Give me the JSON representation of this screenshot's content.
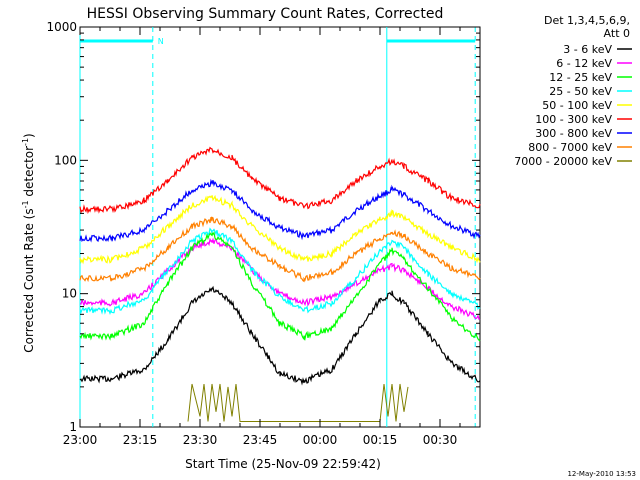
{
  "chart_data": {
    "type": "line",
    "title": "HESSI Observing Summary Count Rates, Corrected",
    "xlabel": "Start Time (25-Nov-09 22:59:42)",
    "ylabel_main": "Corrected Count Rate (s",
    "ylabel_mid": " detector",
    "ylabel_end": ")",
    "ylabel_sup": "-1",
    "yscale": "log",
    "ylim": [
      1,
      1000
    ],
    "y_ticks": [
      1,
      10,
      100,
      1000
    ],
    "y_tick_labels": [
      "1",
      "10",
      "100",
      "1000"
    ],
    "x_unit": "minutes after 23:00 on 25-Nov-09",
    "xlim": [
      0,
      100
    ],
    "x_ticks": [
      0,
      15,
      30,
      45,
      60,
      75,
      90
    ],
    "x_tick_labels": [
      "23:00",
      "23:15",
      "23:30",
      "23:45",
      "00:00",
      "00:15",
      "00:30"
    ],
    "legend": {
      "placement": "right",
      "header": [
        "Det 1,3,4,5,6,9,",
        "Att 0"
      ]
    },
    "series": [
      {
        "name": "3 - 6 keV",
        "color": "#000000",
        "points": [
          [
            0,
            2.3
          ],
          [
            8,
            2.3
          ],
          [
            16,
            2.7
          ],
          [
            22,
            4.5
          ],
          [
            28,
            8.5
          ],
          [
            33,
            10.8
          ],
          [
            38,
            8.5
          ],
          [
            43,
            5
          ],
          [
            50,
            2.5
          ],
          [
            56,
            2.2
          ],
          [
            63,
            2.7
          ],
          [
            69,
            5
          ],
          [
            75,
            9
          ],
          [
            78,
            10
          ],
          [
            81,
            8.5
          ],
          [
            87,
            5
          ],
          [
            93,
            3
          ],
          [
            100,
            2.2
          ]
        ]
      },
      {
        "name": "6 - 12 keV",
        "color": "#ff00ff",
        "points": [
          [
            0,
            8.5
          ],
          [
            8,
            8.5
          ],
          [
            16,
            10
          ],
          [
            22,
            15
          ],
          [
            28,
            22
          ],
          [
            33,
            25
          ],
          [
            38,
            22
          ],
          [
            43,
            15
          ],
          [
            50,
            10
          ],
          [
            56,
            8.5
          ],
          [
            63,
            9.5
          ],
          [
            69,
            12
          ],
          [
            75,
            15
          ],
          [
            78,
            16
          ],
          [
            81,
            15
          ],
          [
            87,
            11
          ],
          [
            93,
            8
          ],
          [
            100,
            6.5
          ]
        ]
      },
      {
        "name": "12 - 25 keV",
        "color": "#00ff00",
        "points": [
          [
            0,
            4.8
          ],
          [
            8,
            4.8
          ],
          [
            16,
            6
          ],
          [
            22,
            12
          ],
          [
            28,
            22
          ],
          [
            33,
            28
          ],
          [
            38,
            22
          ],
          [
            43,
            12
          ],
          [
            50,
            6
          ],
          [
            56,
            4.8
          ],
          [
            63,
            5.5
          ],
          [
            69,
            9.5
          ],
          [
            75,
            17
          ],
          [
            78,
            21
          ],
          [
            81,
            18
          ],
          [
            87,
            11
          ],
          [
            93,
            6.5
          ],
          [
            100,
            4.5
          ]
        ]
      },
      {
        "name": "25 - 50 keV",
        "color": "#00ffff",
        "points": [
          [
            0,
            7.5
          ],
          [
            8,
            7.5
          ],
          [
            16,
            9
          ],
          [
            22,
            15
          ],
          [
            28,
            25
          ],
          [
            33,
            30
          ],
          [
            38,
            25
          ],
          [
            43,
            15
          ],
          [
            50,
            9.5
          ],
          [
            56,
            7.5
          ],
          [
            63,
            8.5
          ],
          [
            69,
            13
          ],
          [
            75,
            21
          ],
          [
            78,
            25
          ],
          [
            81,
            22
          ],
          [
            87,
            14
          ],
          [
            93,
            10
          ],
          [
            100,
            8
          ]
        ]
      },
      {
        "name": "50 - 100 keV",
        "color": "#ffff00",
        "points": [
          [
            0,
            18
          ],
          [
            8,
            18
          ],
          [
            16,
            22
          ],
          [
            22,
            32
          ],
          [
            28,
            46
          ],
          [
            33,
            52
          ],
          [
            38,
            46
          ],
          [
            43,
            32
          ],
          [
            50,
            22
          ],
          [
            56,
            18
          ],
          [
            63,
            20
          ],
          [
            69,
            28
          ],
          [
            75,
            36
          ],
          [
            78,
            40
          ],
          [
            81,
            37
          ],
          [
            87,
            28
          ],
          [
            93,
            22
          ],
          [
            100,
            18
          ]
        ]
      },
      {
        "name": "100 - 300 keV",
        "color": "#ff0000",
        "points": [
          [
            0,
            43
          ],
          [
            8,
            43
          ],
          [
            16,
            50
          ],
          [
            22,
            70
          ],
          [
            28,
            105
          ],
          [
            33,
            120
          ],
          [
            38,
            105
          ],
          [
            43,
            72
          ],
          [
            50,
            52
          ],
          [
            56,
            45
          ],
          [
            63,
            50
          ],
          [
            69,
            70
          ],
          [
            75,
            90
          ],
          [
            78,
            98
          ],
          [
            81,
            90
          ],
          [
            87,
            70
          ],
          [
            93,
            52
          ],
          [
            100,
            45
          ]
        ]
      },
      {
        "name": "300 - 800 keV",
        "color": "#0000ff",
        "points": [
          [
            0,
            26
          ],
          [
            8,
            26
          ],
          [
            16,
            30
          ],
          [
            22,
            42
          ],
          [
            28,
            60
          ],
          [
            33,
            68
          ],
          [
            38,
            60
          ],
          [
            43,
            42
          ],
          [
            50,
            31
          ],
          [
            56,
            27
          ],
          [
            63,
            30
          ],
          [
            69,
            42
          ],
          [
            75,
            54
          ],
          [
            78,
            60
          ],
          [
            81,
            55
          ],
          [
            87,
            42
          ],
          [
            93,
            32
          ],
          [
            100,
            27
          ]
        ]
      },
      {
        "name": "800 - 7000 keV",
        "color": "#ff8000",
        "points": [
          [
            0,
            13
          ],
          [
            8,
            13
          ],
          [
            16,
            15.5
          ],
          [
            22,
            22
          ],
          [
            28,
            32
          ],
          [
            33,
            36
          ],
          [
            38,
            32
          ],
          [
            43,
            22
          ],
          [
            50,
            16
          ],
          [
            56,
            13
          ],
          [
            63,
            14.5
          ],
          [
            69,
            20
          ],
          [
            75,
            26
          ],
          [
            78,
            29
          ],
          [
            81,
            27
          ],
          [
            87,
            20
          ],
          [
            93,
            15.5
          ],
          [
            100,
            13
          ]
        ]
      },
      {
        "name": "7000 - 20000 keV",
        "color": "#808000",
        "points": [
          [
            27,
            1.1
          ],
          [
            28,
            2.1
          ],
          [
            30,
            1.2
          ],
          [
            31,
            2.1
          ],
          [
            32,
            1.1
          ],
          [
            33,
            2.1
          ],
          [
            34,
            1.3
          ],
          [
            35,
            2.1
          ],
          [
            36,
            1.1
          ],
          [
            37,
            2.0
          ],
          [
            38,
            1.2
          ],
          [
            39,
            2.1
          ],
          [
            40,
            1.1
          ],
          [
            75,
            1.1
          ],
          [
            76,
            2.1
          ],
          [
            77,
            1.2
          ],
          [
            78,
            2.1
          ],
          [
            79,
            1.1
          ],
          [
            80,
            2.1
          ],
          [
            81,
            1.3
          ],
          [
            82,
            2.0
          ]
        ]
      }
    ],
    "vertical_markers": [
      {
        "x": 0,
        "style": "solid"
      },
      {
        "x": 18.2,
        "style": "dashed"
      },
      {
        "x": 76.7,
        "style": "solid"
      },
      {
        "x": 98.8,
        "style": "dashed"
      }
    ],
    "top_bars": [
      {
        "x_start": 0,
        "x_end": 18.2
      },
      {
        "x_start": 76.7,
        "x_end": 98.8
      }
    ],
    "top_bar_label": "N",
    "marker_color": "#00ffff",
    "footer_stamp": "12-May-2010 13:53"
  }
}
